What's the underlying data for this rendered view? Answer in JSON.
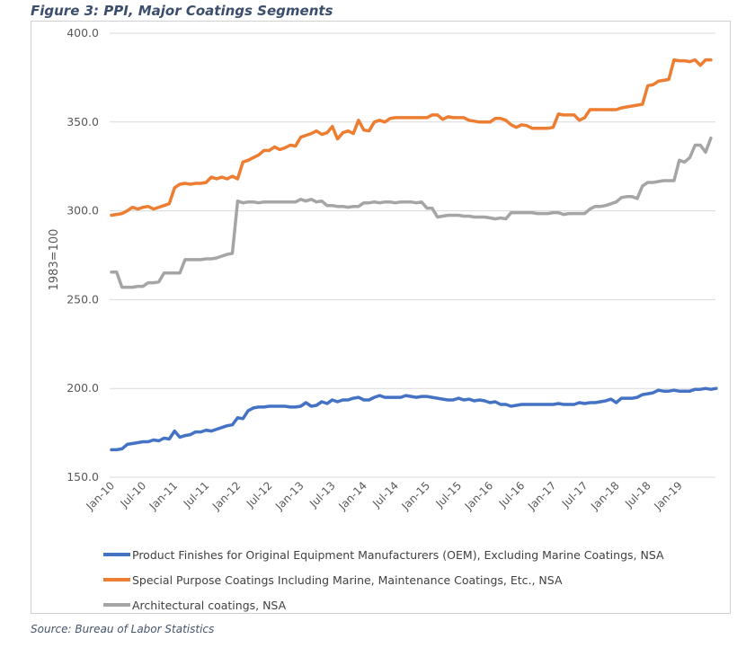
{
  "figure_title": "Figure 3: PPI, Major Coatings Segments",
  "source": "Source: Bureau of Labor Statistics",
  "chart_data": {
    "type": "line",
    "title": "Figure 3: PPI, Major Coatings Segments",
    "xlabel": "",
    "ylabel": "1983=100",
    "ylim": [
      150,
      400
    ],
    "yticks": [
      "400.0",
      "350.0",
      "300.0",
      "250.0",
      "200.0",
      "150.0"
    ],
    "ytick_values": [
      400,
      350,
      300,
      250,
      200,
      150
    ],
    "xtick_labels": [
      "Jan-10",
      "Jul-10",
      "Jan-11",
      "Jul-11",
      "Jan-12",
      "Jul-12",
      "Jan-13",
      "Jul-13",
      "Jan-14",
      "Jul-14",
      "Jan-15",
      "Jul-15",
      "Jan-16",
      "Jul-16",
      "Jan-17",
      "Jul-17",
      "Jan-18",
      "Jul-18",
      "Jan-19"
    ],
    "x_start": "Jan-10",
    "x_frequency": "monthly",
    "grid": true,
    "legend_position": "bottom",
    "series": [
      {
        "name": "Product Finishes for Original Equipment Manufacturers (OEM), Excluding Marine Coatings, NSA",
        "color": "#4472c4",
        "values": [
          165.5,
          165.5,
          166,
          168.5,
          169,
          169.5,
          170,
          170,
          171,
          170.5,
          172,
          171.5,
          176,
          172.5,
          173.5,
          174,
          175.5,
          175.5,
          176.5,
          176,
          177,
          178,
          179,
          179.5,
          183.5,
          183,
          187.5,
          189,
          189.5,
          189.5,
          190,
          190,
          190,
          190,
          189.5,
          189.5,
          190,
          192,
          190,
          190.5,
          192.5,
          191.5,
          193.5,
          192.5,
          193.5,
          193.5,
          194.5,
          195,
          193.5,
          193.5,
          195,
          196,
          195,
          195,
          195,
          195,
          196,
          195.5,
          195,
          195.5,
          195.5,
          195,
          194.5,
          194,
          193.5,
          193.5,
          194.5,
          193.5,
          194,
          193,
          193.5,
          193,
          192,
          192.5,
          191,
          191,
          190,
          190.5,
          191,
          191,
          191,
          191,
          191,
          191,
          191,
          191.5,
          191,
          191,
          191,
          192,
          191.5,
          192,
          192,
          192.5,
          193,
          194,
          192,
          194.5,
          194.5,
          194.5,
          195,
          196.5,
          197,
          197.5,
          199,
          198.5,
          198.5,
          199,
          198.5,
          198.5,
          198.5,
          199.5,
          199.5,
          200,
          199.5,
          200
        ]
      },
      {
        "name": "Special Purpose Coatings Including Marine, Maintenance Coatings, Etc., NSA",
        "color": "#ed7d31",
        "values": [
          297.5,
          298,
          298.5,
          300,
          302,
          301,
          302,
          302.5,
          301,
          302,
          303,
          304,
          313,
          315,
          315.5,
          315,
          315.5,
          315.5,
          316,
          319,
          318,
          319,
          318,
          319.5,
          318,
          327.5,
          328.5,
          330,
          331.5,
          334,
          334,
          336,
          334.5,
          335.5,
          337,
          336.5,
          341.5,
          342.5,
          343.5,
          345,
          343,
          344,
          347.5,
          340.5,
          344,
          345,
          343.5,
          351,
          345.5,
          345,
          350,
          351,
          350,
          352,
          352.5,
          352.5,
          352.5,
          352.5,
          352.5,
          352.5,
          352.5,
          354,
          354,
          351.5,
          353,
          352.5,
          352.5,
          352.5,
          351,
          350.5,
          350,
          350,
          350,
          352,
          352,
          351,
          348.5,
          347,
          348.5,
          348,
          346.5,
          346.5,
          346.5,
          346.5,
          347,
          354.5,
          354,
          354,
          354,
          351,
          352.5,
          357,
          357,
          357,
          357,
          357,
          357,
          358,
          358.5,
          359,
          359.5,
          360,
          370.5,
          371,
          373,
          373.5,
          374,
          385,
          384.5,
          384.5,
          384,
          385,
          382,
          385,
          385
        ]
      },
      {
        "name": "Architectural coatings, NSA",
        "color": "#a5a5a5",
        "values": [
          265.5,
          265.5,
          257,
          257,
          257,
          257.5,
          257.5,
          259.5,
          259.5,
          260,
          265,
          265,
          265,
          265,
          272.5,
          272.5,
          272.5,
          272.5,
          273,
          273,
          273.5,
          274.5,
          275.5,
          276,
          305.5,
          304.5,
          305,
          305,
          304.5,
          305,
          305,
          305,
          305,
          305,
          305,
          305,
          306.5,
          305.5,
          306.5,
          305,
          305.5,
          303,
          303,
          302.5,
          302.5,
          302,
          302.5,
          302.5,
          304.5,
          304.5,
          305,
          304.5,
          305,
          305,
          304.5,
          305,
          305,
          305,
          304.5,
          305,
          301.5,
          301.5,
          296.5,
          297,
          297.5,
          297.5,
          297.5,
          297,
          297,
          296.5,
          296.5,
          296.5,
          296,
          295.5,
          296,
          295.5,
          299,
          299,
          299,
          299,
          299,
          298.5,
          298.5,
          298.5,
          299,
          299,
          298,
          298.5,
          298.5,
          298.5,
          298.5,
          301,
          302.5,
          302.5,
          303,
          304,
          305,
          307.5,
          308,
          308,
          307,
          314,
          316,
          316,
          316.5,
          317,
          317,
          317,
          328.5,
          327.5,
          330,
          337,
          337,
          333,
          341
        ]
      }
    ]
  }
}
